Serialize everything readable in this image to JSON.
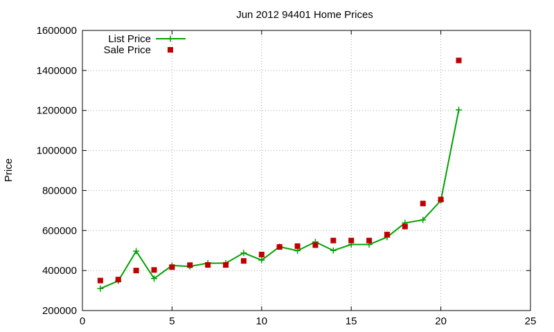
{
  "chart_data": {
    "type": "line",
    "title": "Jun 2012 94401 Home Prices",
    "xlabel": "",
    "ylabel": "Price",
    "xlim": [
      0,
      25
    ],
    "ylim": [
      200000,
      1600000
    ],
    "x_ticks": [
      "0",
      "5",
      "10",
      "15",
      "20",
      "25"
    ],
    "y_ticks": [
      "200000",
      "400000",
      "600000",
      "800000",
      "1000000",
      "1200000",
      "1400000",
      "1600000"
    ],
    "grid": true,
    "legend_position": "top-left",
    "x": [
      1,
      2,
      3,
      4,
      5,
      6,
      7,
      8,
      9,
      10,
      11,
      12,
      13,
      14,
      15,
      16,
      17,
      18,
      19,
      20,
      21
    ],
    "series": [
      {
        "name": "List Price",
        "style": "line-with-plus-markers",
        "color": "#00a000",
        "values": [
          310000,
          348000,
          497000,
          360000,
          425000,
          421000,
          437000,
          437000,
          488000,
          452000,
          519000,
          499000,
          543000,
          500000,
          530000,
          530000,
          567000,
          638000,
          653000,
          750000,
          1203000
        ]
      },
      {
        "name": "Sale Price",
        "style": "square-markers",
        "color": "#c00000",
        "values": [
          350000,
          355000,
          400000,
          403000,
          417000,
          427000,
          428000,
          428000,
          448000,
          480000,
          518000,
          522000,
          527000,
          550000,
          550000,
          550000,
          580000,
          620000,
          735000,
          755000,
          1450000
        ]
      }
    ]
  }
}
